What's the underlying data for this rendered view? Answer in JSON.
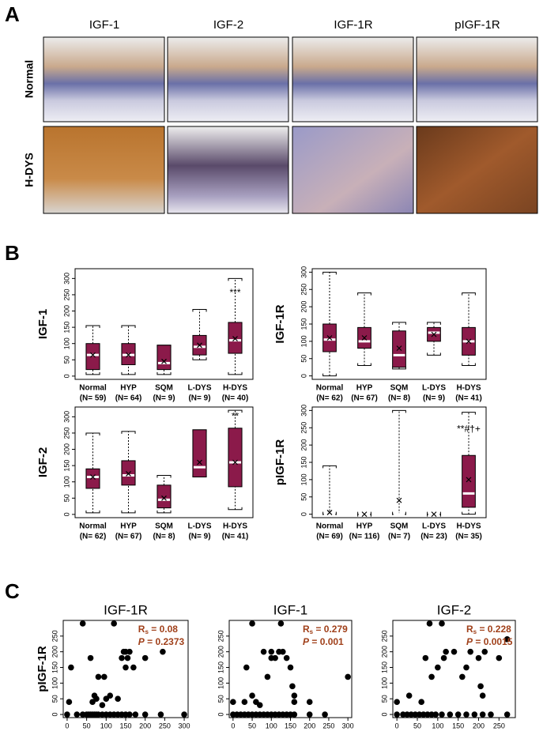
{
  "panel_a": {
    "label": "A",
    "columns": [
      "IGF-1",
      "IGF-2",
      "IGF-1R",
      "pIGF-1R"
    ],
    "rows": [
      "Normal",
      "H-DYS"
    ]
  },
  "panel_b_label": "B",
  "panel_c_label": "C",
  "chart_data": [
    {
      "type": "box",
      "ylabel": "IGF-1",
      "box_color": "#8b1a4a",
      "ylim": [
        -10,
        330
      ],
      "yticks": [
        0,
        50,
        100,
        150,
        200,
        250,
        300
      ],
      "categories": [
        "Normal",
        "HYP",
        "SQM",
        "L-DYS",
        "H-DYS"
      ],
      "n_labels": [
        "(N= 59)",
        "(N= 64)",
        "(N= 9)",
        "(N= 9)",
        "(N= 40)"
      ],
      "boxes": [
        {
          "min": 5,
          "q1": 20,
          "median": 65,
          "q3": 100,
          "max": 155,
          "mean": 65
        },
        {
          "min": 5,
          "q1": 35,
          "median": 65,
          "q3": 100,
          "max": 155,
          "mean": 65
        },
        {
          "min": 5,
          "q1": 20,
          "median": 40,
          "q3": 95,
          "max": 95,
          "mean": 45
        },
        {
          "min": 50,
          "q1": 65,
          "median": 90,
          "q3": 125,
          "max": 205,
          "mean": 95
        },
        {
          "min": 5,
          "q1": 70,
          "median": 110,
          "q3": 165,
          "max": 300,
          "mean": 115
        }
      ],
      "annotations": [
        {
          "category": 4,
          "y": 255,
          "text": "***"
        }
      ]
    },
    {
      "type": "box",
      "ylabel": "IGF-1R",
      "box_color": "#8b1a4a",
      "ylim": [
        -10,
        310
      ],
      "yticks": [
        0,
        50,
        100,
        150,
        200,
        250,
        300
      ],
      "categories": [
        "Normal",
        "HYP",
        "SQM",
        "L-DYS",
        "H-DYS"
      ],
      "n_labels": [
        "(N= 62)",
        "(N= 67)",
        "(N= 8)",
        "(N= 9)",
        "(N= 41)"
      ],
      "boxes": [
        {
          "min": 0,
          "q1": 70,
          "median": 105,
          "q3": 150,
          "max": 300,
          "mean": 110
        },
        {
          "min": 30,
          "q1": 80,
          "median": 100,
          "q3": 140,
          "max": 240,
          "mean": 110
        },
        {
          "min": 20,
          "q1": 25,
          "median": 60,
          "q3": 130,
          "max": 155,
          "mean": 80
        },
        {
          "min": 60,
          "q1": 100,
          "median": 125,
          "q3": 140,
          "max": 155,
          "mean": 120
        },
        {
          "min": 30,
          "q1": 60,
          "median": 100,
          "q3": 140,
          "max": 240,
          "mean": 100
        }
      ],
      "annotations": []
    },
    {
      "type": "box",
      "ylabel": "IGF-2",
      "box_color": "#8b1a4a",
      "ylim": [
        -10,
        330
      ],
      "yticks": [
        0,
        50,
        100,
        150,
        200,
        250,
        300
      ],
      "categories": [
        "Normal",
        "HYP",
        "SQM",
        "L-DYS",
        "H-DYS"
      ],
      "n_labels": [
        "(N= 62)",
        "(N= 67)",
        "(N= 8)",
        "(N= 9)",
        "(N= 41)"
      ],
      "boxes": [
        {
          "min": 5,
          "q1": 80,
          "median": 115,
          "q3": 140,
          "max": 250,
          "mean": 115
        },
        {
          "min": 5,
          "q1": 90,
          "median": 120,
          "q3": 165,
          "max": 255,
          "mean": 125
        },
        {
          "min": 5,
          "q1": 20,
          "median": 45,
          "q3": 90,
          "max": 120,
          "mean": 50
        },
        {
          "min": 115,
          "q1": 115,
          "median": 145,
          "q3": 260,
          "max": 260,
          "mean": 160
        },
        {
          "min": 15,
          "q1": 85,
          "median": 160,
          "q3": 265,
          "max": 320,
          "mean": 160
        }
      ],
      "annotations": [
        {
          "category": 4,
          "y": 300,
          "text": "**"
        }
      ]
    },
    {
      "type": "box",
      "ylabel": "pIGF-1R",
      "box_color": "#8b1a4a",
      "ylim": [
        -10,
        310
      ],
      "yticks": [
        0,
        50,
        100,
        150,
        200,
        250,
        300
      ],
      "categories": [
        "Normal",
        "HYP",
        "SQM",
        "L-DYS",
        "H-DYS"
      ],
      "n_labels": [
        "(N= 69)",
        "(N= 116)",
        "(N= 7)",
        "(N= 23)",
        "(N= 35)"
      ],
      "boxes": [
        {
          "min": 0,
          "q1": 0,
          "median": 0,
          "q3": 0,
          "max": 140,
          "mean": 5
        },
        {
          "min": 0,
          "q1": 0,
          "median": 0,
          "q3": 0,
          "max": 0,
          "mean": 0
        },
        {
          "min": 0,
          "q1": 0,
          "median": 0,
          "q3": 0,
          "max": 300,
          "mean": 40
        },
        {
          "min": 0,
          "q1": 0,
          "median": 0,
          "q3": 0,
          "max": 0,
          "mean": 0
        },
        {
          "min": 0,
          "q1": 20,
          "median": 60,
          "q3": 170,
          "max": 295,
          "mean": 100
        }
      ],
      "annotations": [
        {
          "category": 4,
          "y": 245,
          "text": "**#†+"
        }
      ]
    },
    {
      "type": "scatter",
      "title": "IGF-1R",
      "ylabel": "pIGF-1R",
      "color": "#000000",
      "xlim": [
        -10,
        310
      ],
      "ylim": [
        -10,
        300
      ],
      "xticks": [
        0,
        50,
        100,
        150,
        200,
        250,
        300
      ],
      "yticks": [
        0,
        50,
        100,
        150,
        200,
        250
      ],
      "x": [
        0,
        25,
        40,
        50,
        55,
        60,
        65,
        70,
        75,
        80,
        90,
        100,
        110,
        120,
        130,
        140,
        150,
        160,
        175,
        200,
        240,
        300,
        40,
        10,
        5,
        60,
        70,
        75,
        80,
        90,
        95,
        100,
        110,
        120,
        130,
        140,
        145,
        150,
        155,
        160,
        170,
        200,
        245,
        65,
        150
      ],
      "y": [
        0,
        0,
        0,
        0,
        0,
        0,
        0,
        0,
        0,
        0,
        0,
        0,
        0,
        0,
        0,
        0,
        0,
        0,
        0,
        0,
        0,
        0,
        290,
        150,
        40,
        180,
        60,
        50,
        120,
        30,
        120,
        50,
        60,
        290,
        50,
        180,
        200,
        200,
        180,
        200,
        150,
        180,
        200,
        40,
        150
      ],
      "stats": {
        "r": "R",
        "r_sub": "s",
        "r_text": " = 0.08",
        "p": "P",
        "p_text": " = 0.2373"
      }
    },
    {
      "type": "scatter",
      "title": "IGF-1",
      "ylabel": null,
      "color": "#000000",
      "xlim": [
        -10,
        310
      ],
      "ylim": [
        -10,
        300
      ],
      "xticks": [
        0,
        50,
        100,
        150,
        200,
        250,
        300
      ],
      "yticks": [
        0,
        50,
        100,
        150,
        200,
        250
      ],
      "x": [
        0,
        10,
        20,
        30,
        40,
        50,
        60,
        70,
        80,
        90,
        100,
        110,
        120,
        130,
        140,
        150,
        160,
        200,
        240,
        0,
        30,
        35,
        50,
        50,
        60,
        70,
        80,
        90,
        100,
        100,
        110,
        120,
        125,
        130,
        140,
        150,
        155,
        160,
        200,
        300,
        160
      ],
      "y": [
        0,
        0,
        0,
        0,
        0,
        0,
        0,
        0,
        0,
        0,
        0,
        0,
        0,
        0,
        0,
        0,
        0,
        0,
        0,
        40,
        40,
        150,
        60,
        290,
        40,
        30,
        200,
        120,
        200,
        180,
        180,
        200,
        290,
        200,
        180,
        150,
        90,
        60,
        40,
        120,
        40
      ],
      "stats": {
        "r": "R",
        "r_sub": "s",
        "r_text": " = 0.279",
        "p": "P",
        "p_text": " = 0.001"
      }
    },
    {
      "type": "scatter",
      "title": "IGF-2",
      "ylabel": null,
      "color": "#000000",
      "xlim": [
        -10,
        290
      ],
      "ylim": [
        -10,
        300
      ],
      "xticks": [
        0,
        50,
        100,
        150,
        200,
        250
      ],
      "yticks": [
        0,
        50,
        100,
        150,
        200,
        250
      ],
      "x": [
        0,
        15,
        25,
        35,
        45,
        55,
        65,
        75,
        85,
        95,
        110,
        130,
        150,
        170,
        190,
        210,
        230,
        270,
        0,
        30,
        60,
        70,
        80,
        85,
        100,
        110,
        115,
        120,
        140,
        160,
        170,
        180,
        200,
        205,
        210,
        215,
        250,
        270
      ],
      "y": [
        0,
        0,
        0,
        0,
        0,
        0,
        0,
        0,
        0,
        0,
        0,
        0,
        0,
        0,
        0,
        0,
        0,
        0,
        40,
        60,
        40,
        180,
        290,
        120,
        150,
        290,
        180,
        200,
        200,
        120,
        150,
        200,
        180,
        90,
        60,
        200,
        180,
        240
      ],
      "stats": {
        "r": "R",
        "r_sub": "s",
        "r_text": " = 0.228",
        "p": "P",
        "p_text": " = 0.0015"
      }
    }
  ]
}
